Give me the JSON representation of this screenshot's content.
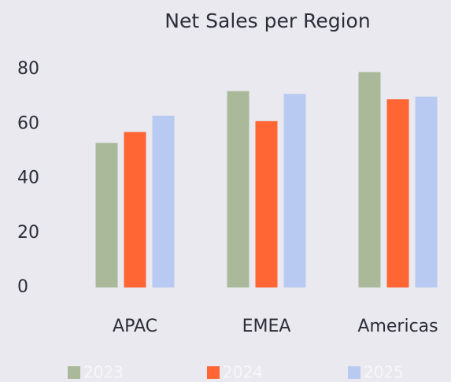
{
  "chart_data": {
    "type": "bar",
    "title": "Net Sales per Region",
    "categories": [
      "APAC",
      "EMEA",
      "Americas"
    ],
    "series": [
      {
        "name": "2023",
        "color": "#a9b99a",
        "values": [
          53,
          72,
          79
        ]
      },
      {
        "name": "2024",
        "color": "#ff6633",
        "values": [
          57,
          61,
          69
        ]
      },
      {
        "name": "2025",
        "color": "#b9caf2",
        "values": [
          63,
          71,
          70
        ]
      }
    ],
    "ylim": [
      0,
      80
    ],
    "yticks": [
      0,
      20,
      40,
      60,
      80
    ],
    "grid": false
  }
}
